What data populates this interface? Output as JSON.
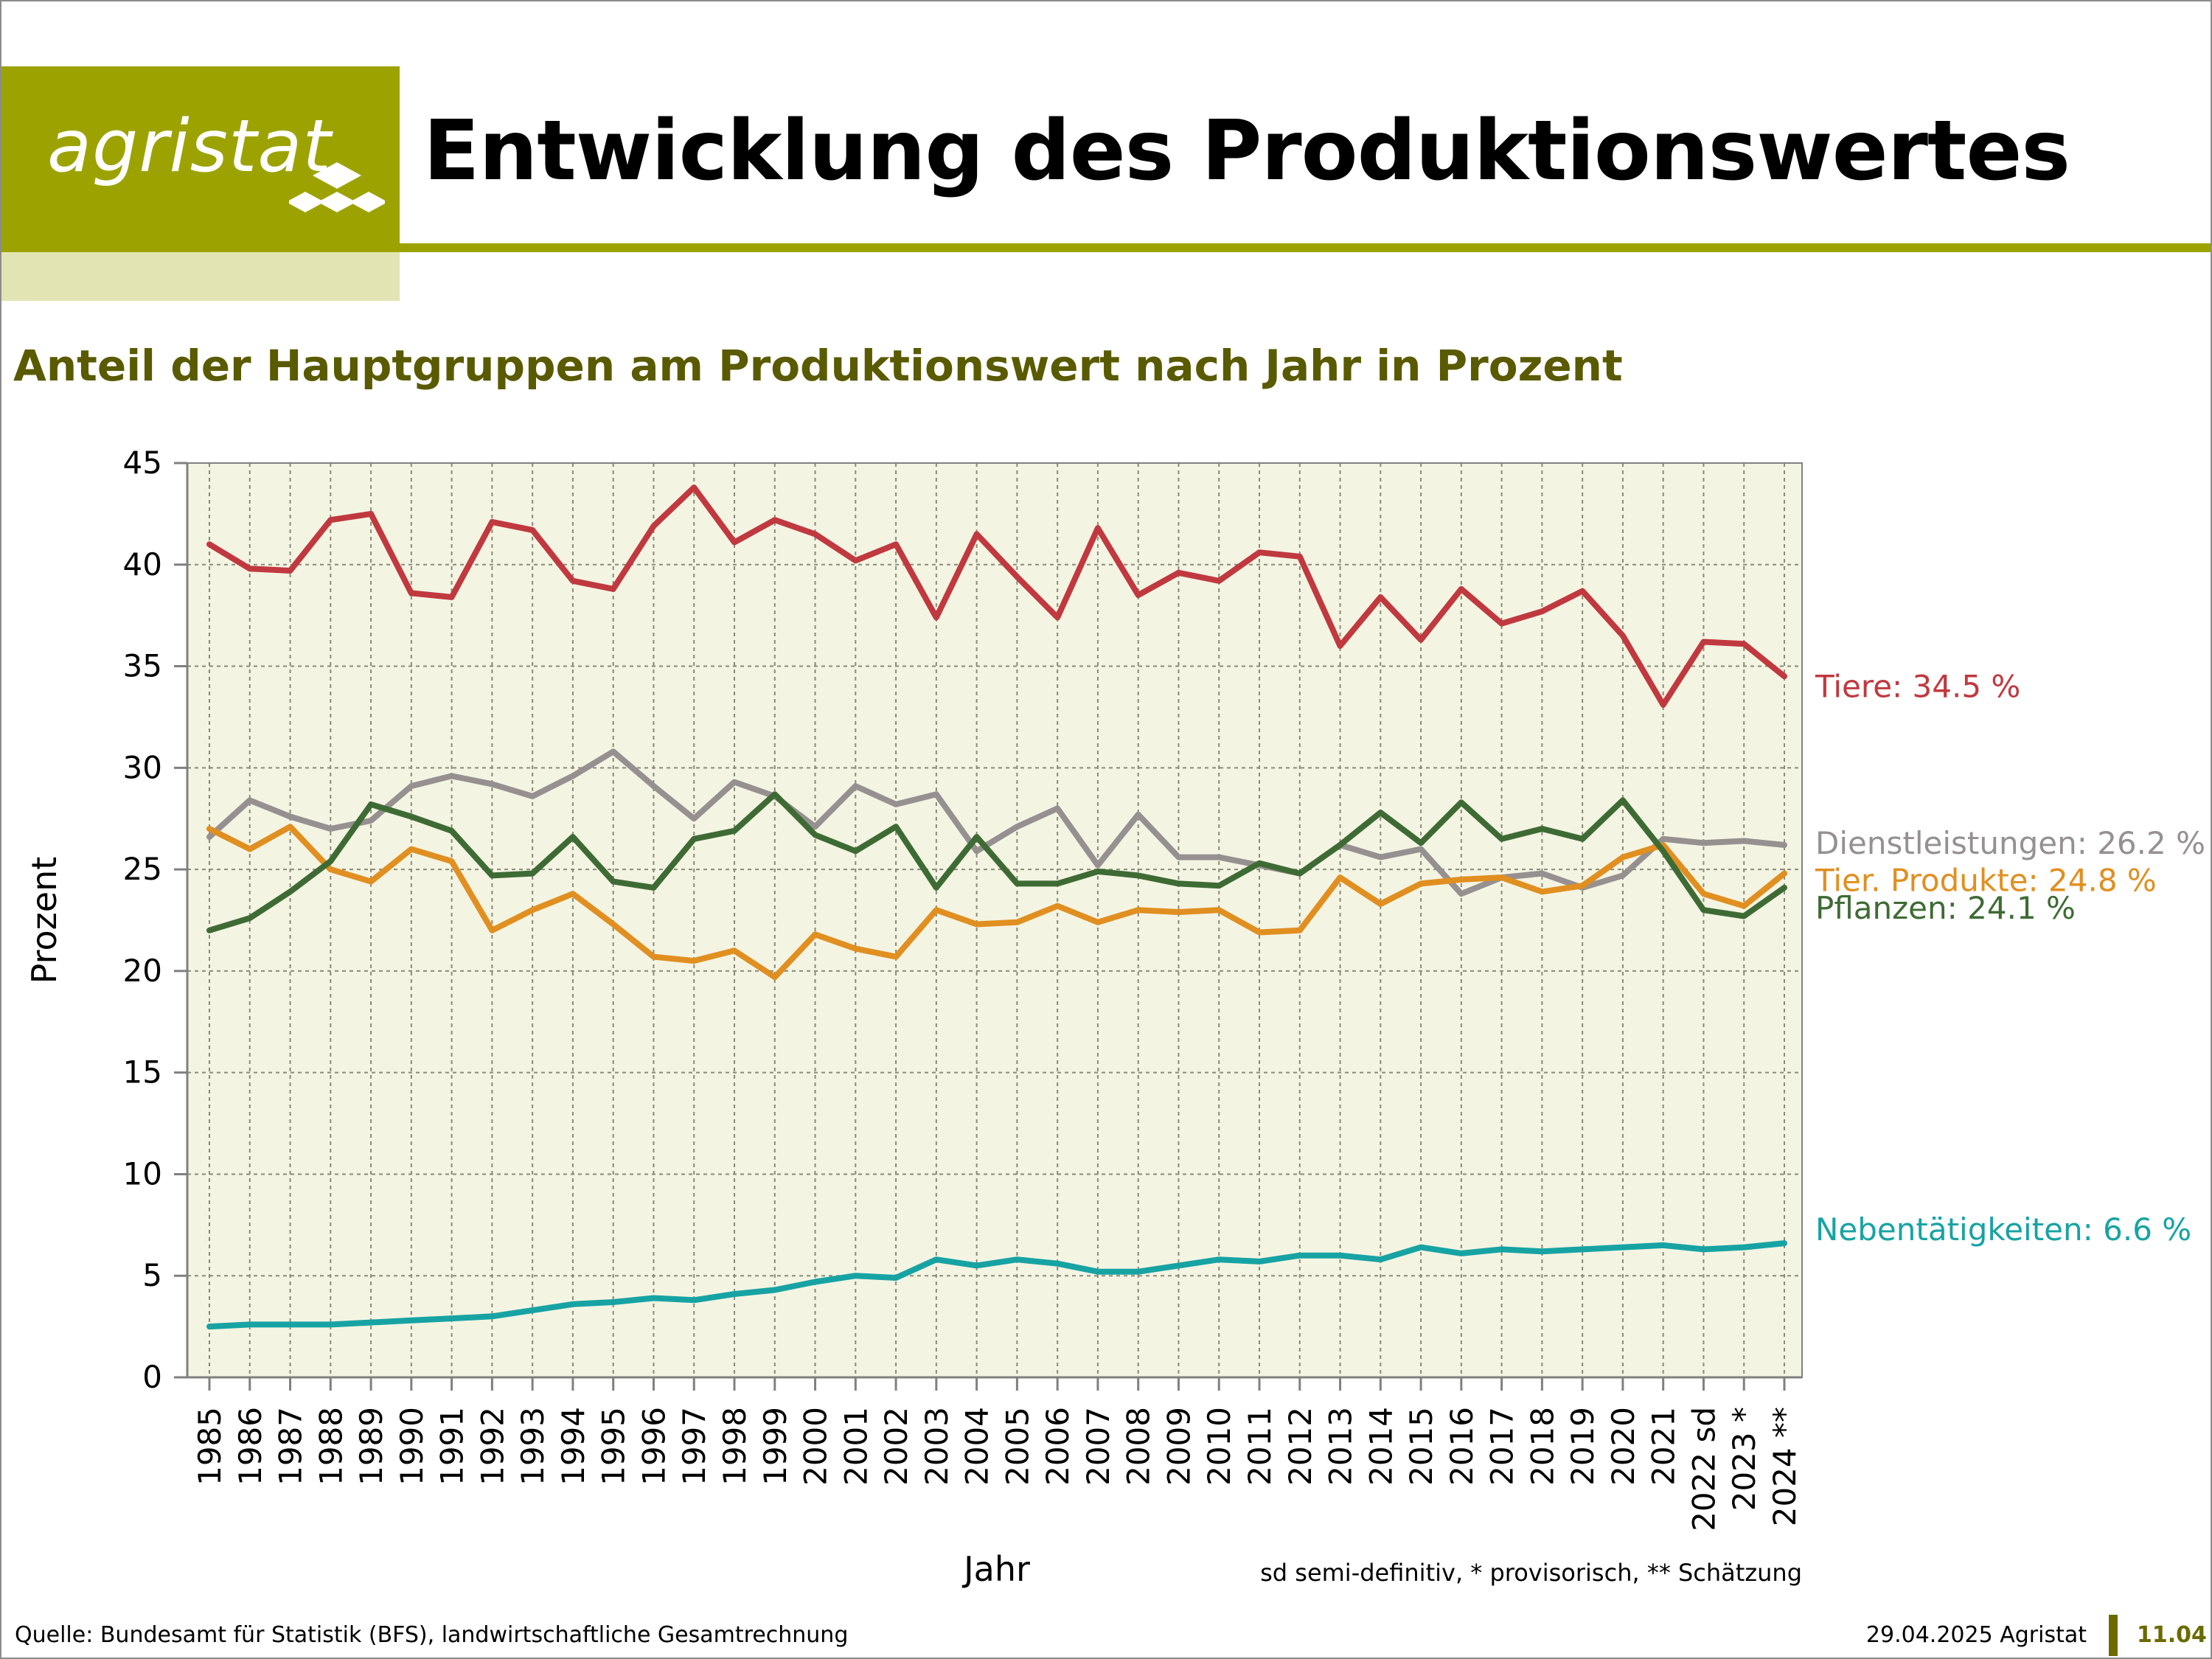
{
  "header": {
    "logo_text": "agristat",
    "title": "Entwicklung des Produktionswertes"
  },
  "subtitle": "Anteil der Hauptgruppen am Produktionswert nach Jahr in Prozent",
  "footer": {
    "source": "Quelle: Bundesamt für Statistik (BFS), landwirtschaftliche Gesamtrechnung",
    "date": "29.04.2025 Agristat",
    "page": "11.04"
  },
  "colors": {
    "brand": "#9ca300",
    "brand_light": "#e2e4b3",
    "plot_bg": "#f4f4e3"
  },
  "chart_data": {
    "type": "line",
    "xlabel": "Jahr",
    "ylabel": "Prozent",
    "ylim": [
      0,
      45
    ],
    "yticks": [
      0,
      5,
      10,
      15,
      20,
      25,
      30,
      35,
      40,
      45
    ],
    "grid": true,
    "note": "sd semi-definitiv, * provisorisch, ** Schätzung",
    "categories": [
      "1985",
      "1986",
      "1987",
      "1988",
      "1989",
      "1990",
      "1991",
      "1992",
      "1993",
      "1994",
      "1995",
      "1996",
      "1997",
      "1998",
      "1999",
      "2000",
      "2001",
      "2002",
      "2003",
      "2004",
      "2005",
      "2006",
      "2007",
      "2008",
      "2009",
      "2010",
      "2011",
      "2012",
      "2013",
      "2014",
      "2015",
      "2016",
      "2017",
      "2018",
      "2019",
      "2020",
      "2021",
      "2022 sd",
      "2023 *",
      "2024 **"
    ],
    "series": [
      {
        "name": "Tiere",
        "end_label": "Tiere: 34.5 %",
        "color": "#c0393f",
        "values": [
          41.0,
          39.8,
          39.7,
          42.2,
          42.5,
          38.6,
          38.4,
          42.1,
          41.7,
          39.2,
          38.8,
          41.9,
          43.8,
          41.1,
          42.2,
          41.5,
          40.2,
          41.0,
          37.4,
          41.5,
          39.4,
          37.4,
          41.8,
          38.5,
          39.6,
          39.2,
          40.6,
          40.4,
          36.0,
          38.4,
          36.3,
          38.8,
          37.1,
          37.7,
          38.7,
          36.5,
          33.1,
          36.2,
          36.1,
          34.5
        ]
      },
      {
        "name": "Dienstleistungen",
        "end_label": "Dienstleistungen: 26.2 %",
        "color": "#969090",
        "values": [
          26.6,
          28.4,
          27.6,
          27.0,
          27.4,
          29.1,
          29.6,
          29.2,
          28.6,
          29.6,
          30.8,
          29.1,
          27.5,
          29.3,
          28.6,
          27.1,
          29.1,
          28.2,
          28.7,
          25.9,
          27.1,
          28.0,
          25.2,
          27.7,
          25.6,
          25.6,
          25.2,
          24.8,
          26.2,
          25.6,
          26.0,
          23.8,
          24.6,
          24.8,
          24.1,
          24.7,
          26.5,
          26.3,
          26.4,
          26.2
        ]
      },
      {
        "name": "Tier. Produkte",
        "end_label": "Tier. Produkte: 24.8 %",
        "color": "#e08f20",
        "values": [
          27.0,
          26.0,
          27.1,
          25.0,
          24.4,
          26.0,
          25.4,
          22.0,
          23.0,
          23.8,
          22.3,
          20.7,
          20.5,
          21.0,
          19.7,
          21.8,
          21.1,
          20.7,
          23.0,
          22.3,
          22.4,
          23.2,
          22.4,
          23.0,
          22.9,
          23.0,
          21.9,
          22.0,
          24.6,
          23.3,
          24.3,
          24.5,
          24.6,
          23.9,
          24.2,
          25.6,
          26.2,
          23.8,
          23.2,
          24.8
        ]
      },
      {
        "name": "Pflanzen",
        "end_label": "Pflanzen: 24.1 %",
        "color": "#3e6b34",
        "values": [
          22.0,
          22.6,
          23.9,
          25.4,
          28.2,
          27.6,
          26.9,
          24.7,
          24.8,
          26.6,
          24.4,
          24.1,
          26.5,
          26.9,
          28.7,
          26.7,
          25.9,
          27.1,
          24.1,
          26.6,
          24.3,
          24.3,
          24.9,
          24.7,
          24.3,
          24.2,
          25.3,
          24.8,
          26.2,
          27.8,
          26.3,
          28.3,
          26.5,
          27.0,
          26.5,
          28.4,
          25.9,
          23.0,
          22.7,
          24.1
        ]
      },
      {
        "name": "Nebentätigkeiten",
        "end_label": "Nebentätigkeiten: 6.6 %",
        "color": "#17a3a3",
        "values": [
          2.5,
          2.6,
          2.6,
          2.6,
          2.7,
          2.8,
          2.9,
          3.0,
          3.3,
          3.6,
          3.7,
          3.9,
          3.8,
          4.1,
          4.3,
          4.7,
          5.0,
          4.9,
          5.8,
          5.5,
          5.8,
          5.6,
          5.2,
          5.2,
          5.5,
          5.8,
          5.7,
          6.0,
          6.0,
          5.8,
          6.4,
          6.1,
          6.3,
          6.2,
          6.3,
          6.4,
          6.5,
          6.3,
          6.4,
          6.6
        ]
      }
    ]
  }
}
